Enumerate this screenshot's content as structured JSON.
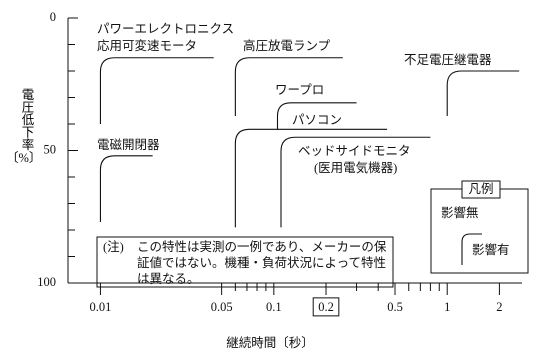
{
  "chart_data": {
    "type": "line",
    "xscale": "log",
    "y_label": "電圧低下率",
    "y_unit": "〔%〕",
    "x_label": "継続時間〔秒〕",
    "xlim": [
      0.0065,
      2.7
    ],
    "ylim": [
      0,
      100
    ],
    "y_inverted": true,
    "xticks": [
      0.01,
      0.05,
      0.1,
      0.2,
      0.5,
      1,
      2
    ],
    "boxed_xticks": [
      0.2
    ],
    "xminorticks": [
      0.06,
      0.07,
      0.08,
      0.09,
      0.3,
      0.4,
      0.6,
      0.7,
      0.8,
      0.9
    ],
    "yticks": [
      0,
      50,
      100
    ],
    "yminorticks": [
      10,
      20,
      30,
      40,
      60,
      70,
      80,
      90
    ],
    "color": "#111111",
    "series": [
      {
        "name_lines": [
          "パワーエレクトロニクス",
          "応用可変速モータ"
        ],
        "x": [
          0.01,
          0.01,
          0.045
        ],
        "values": [
          40,
          15,
          15
        ]
      },
      {
        "name_lines": [
          "高圧放電ランプ"
        ],
        "x": [
          0.06,
          0.06,
          0.25
        ],
        "values": [
          37,
          15,
          15
        ]
      },
      {
        "name_lines": [
          "ワープロ"
        ],
        "x": [
          0.105,
          0.105,
          0.3
        ],
        "values": [
          42,
          32,
          32
        ]
      },
      {
        "name_lines": [
          "パソコン"
        ],
        "x": [
          0.06,
          0.06,
          0.45
        ],
        "values": [
          79,
          42,
          42
        ]
      },
      {
        "name_lines": [
          "ベッドサイドモニタ",
          "(医用電気機器)"
        ],
        "x": [
          0.11,
          0.11,
          0.8
        ],
        "values": [
          79,
          45,
          45
        ]
      },
      {
        "name_lines": [
          "不足電圧継電器"
        ],
        "x": [
          1,
          1,
          2.6
        ],
        "values": [
          37,
          20,
          20
        ]
      },
      {
        "name_lines": [
          "電磁開閉器"
        ],
        "x": [
          0.01,
          0.01,
          0.02
        ],
        "values": [
          77,
          52,
          52
        ]
      }
    ],
    "legend": {
      "title": "凡例",
      "items": [
        "影響無",
        "影響有"
      ]
    },
    "note": {
      "prefix": "(注)",
      "lines": [
        "この特性は実測の一例であり、メーカーの保",
        "証値ではない。機種・負荷状況によって特性",
        "は異なる。"
      ]
    }
  }
}
